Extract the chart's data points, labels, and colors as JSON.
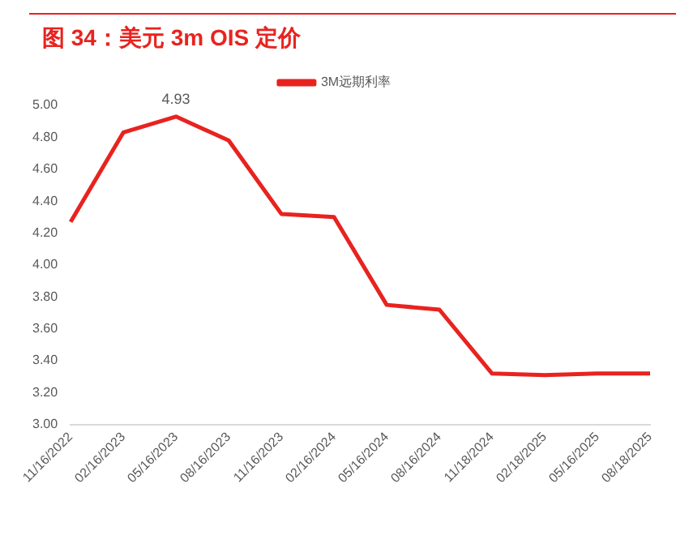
{
  "chart_data": {
    "type": "line",
    "title": "图 34：美元 3m OIS 定价",
    "categories": [
      "11/16/2022",
      "02/16/2023",
      "05/16/2023",
      "08/16/2023",
      "11/16/2023",
      "02/16/2024",
      "05/16/2024",
      "08/16/2024",
      "11/18/2024",
      "02/18/2025",
      "05/16/2025",
      "08/18/2025"
    ],
    "series": [
      {
        "name": "3M远期利率",
        "color": "#e8231f",
        "values": [
          4.27,
          4.83,
          4.93,
          4.78,
          4.32,
          4.3,
          3.75,
          3.72,
          3.32,
          3.31,
          3.32,
          3.32
        ],
        "value_labels": [
          null,
          null,
          "4.93",
          null,
          null,
          null,
          null,
          null,
          null,
          null,
          null,
          null
        ]
      }
    ],
    "ylim": [
      3.0,
      5.0
    ],
    "yticks": [
      {
        "value": 3.0,
        "label": "3.00"
      },
      {
        "value": 3.2,
        "label": "3.20"
      },
      {
        "value": 3.4,
        "label": "3.40"
      },
      {
        "value": 3.6,
        "label": "3.60"
      },
      {
        "value": 3.8,
        "label": "3.80"
      },
      {
        "value": 4.0,
        "label": "4.00"
      },
      {
        "value": 4.2,
        "label": "4.20"
      },
      {
        "value": 4.4,
        "label": "4.40"
      },
      {
        "value": 4.6,
        "label": "4.60"
      },
      {
        "value": 4.8,
        "label": "4.80"
      },
      {
        "value": 5.0,
        "label": "5.00"
      }
    ],
    "grid": false,
    "legend": "top",
    "marker": "none",
    "line_style": "solid"
  }
}
